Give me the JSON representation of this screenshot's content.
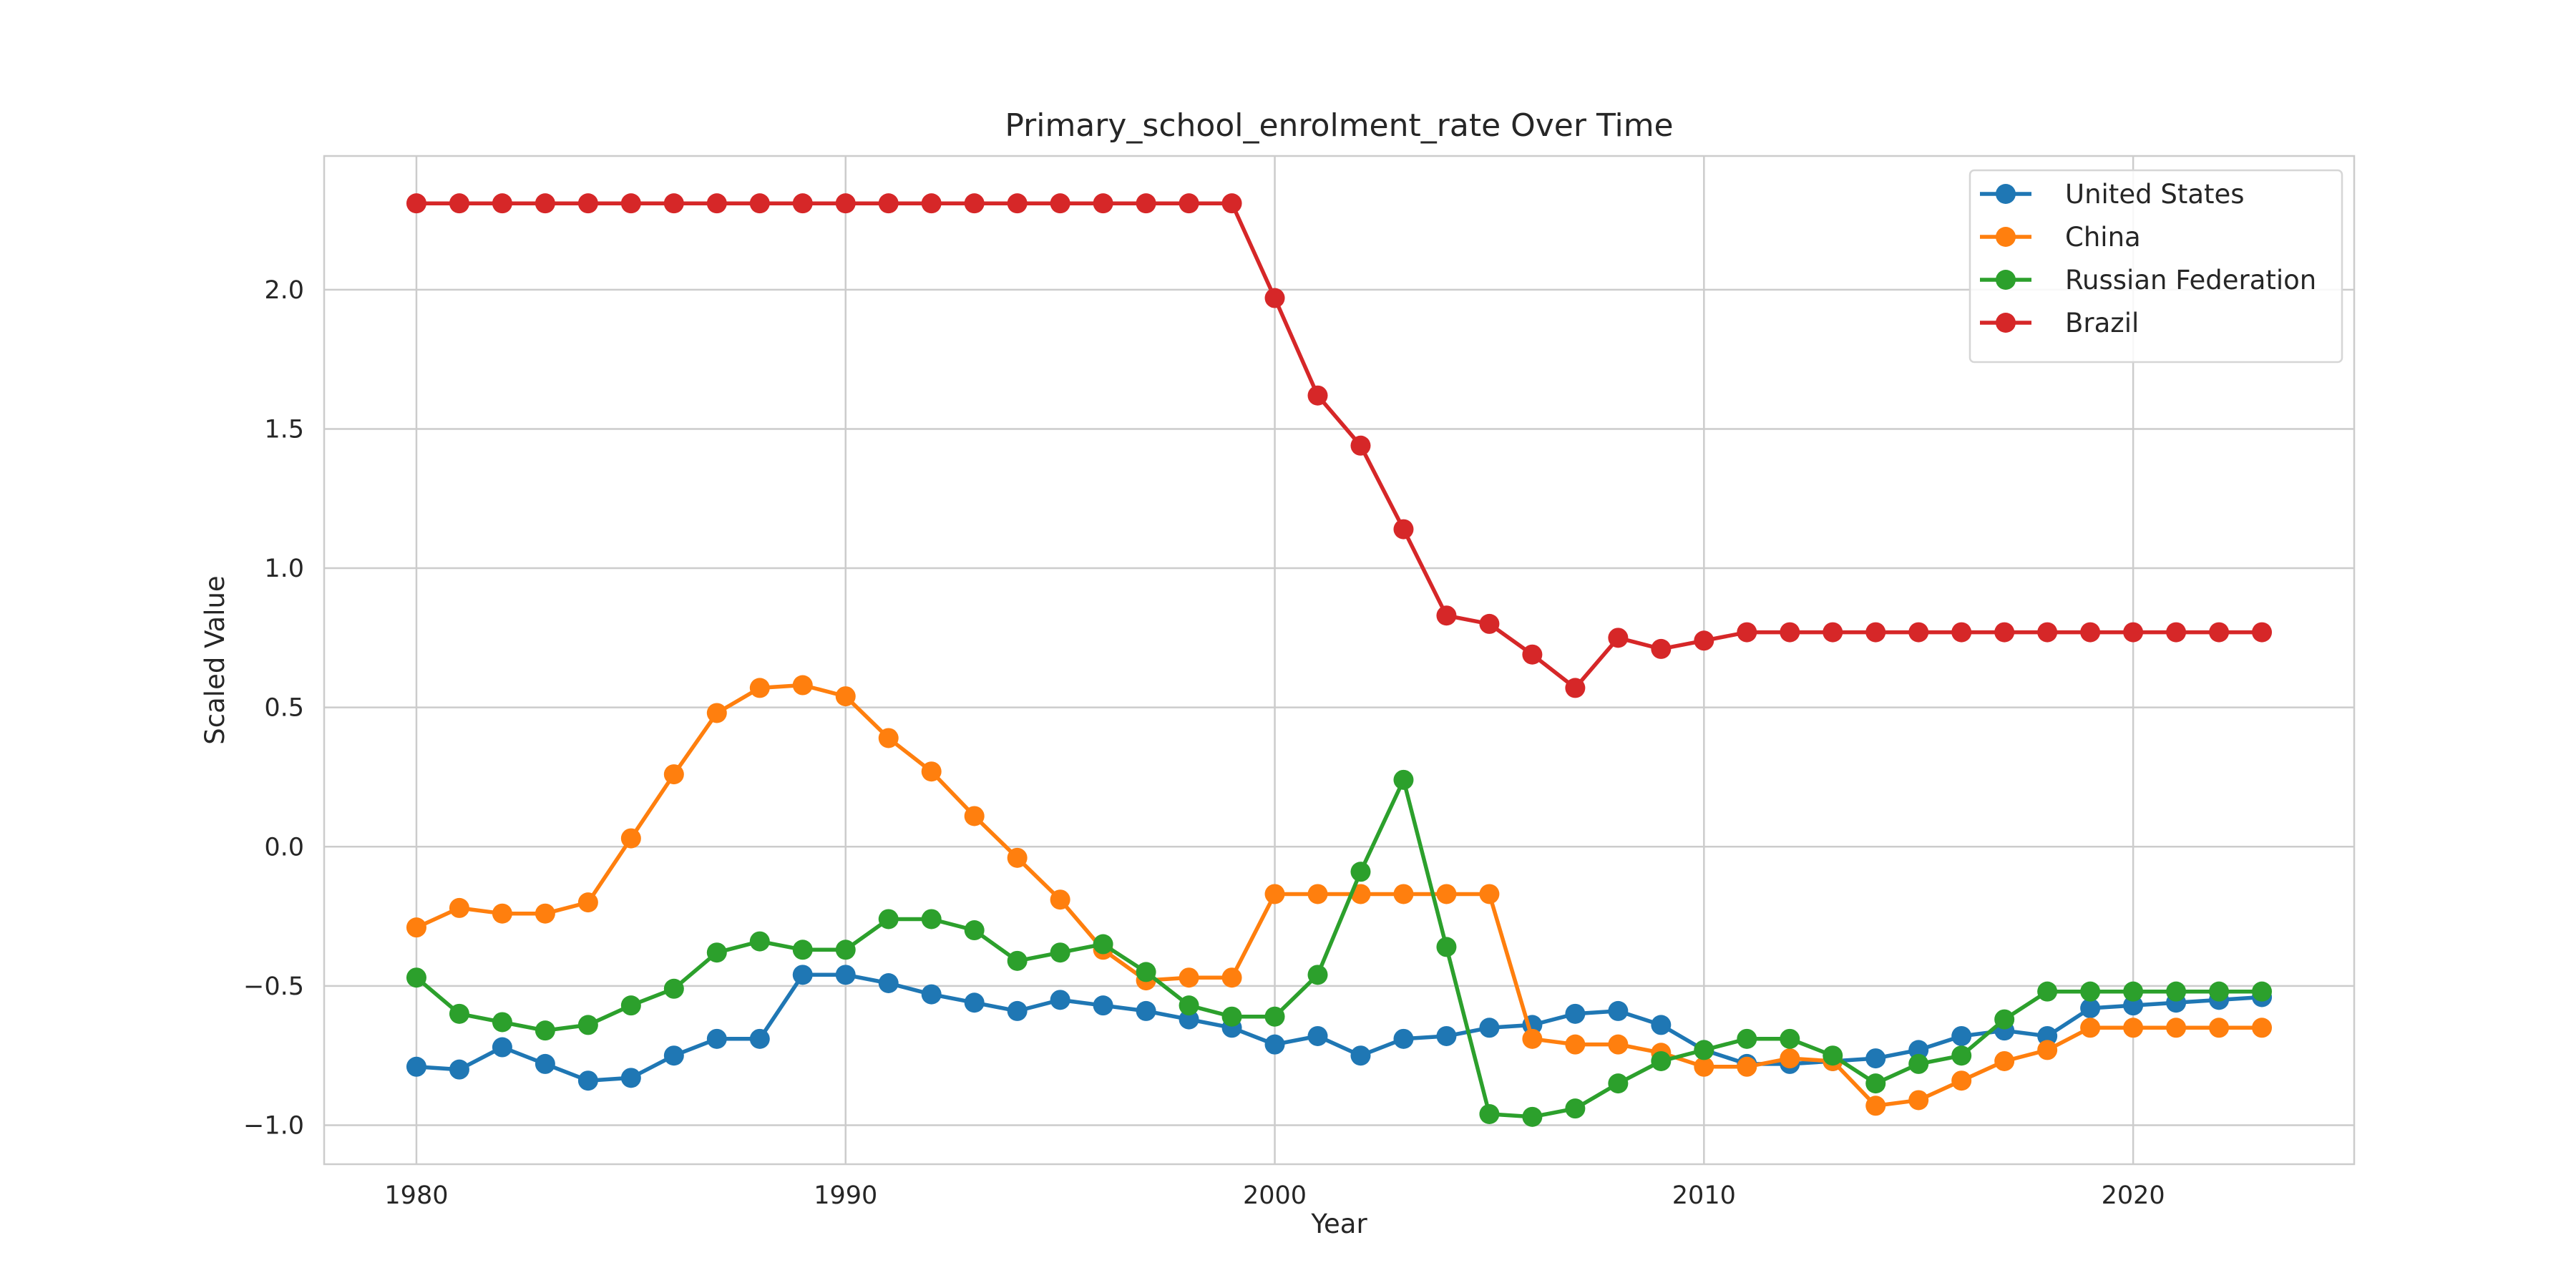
{
  "chart_data": {
    "type": "line",
    "title": "Primary_school_enrolment_rate Over Time",
    "xlabel": "Year",
    "ylabel": "Scaled Value",
    "xlim": [
      1977.85,
      2025.15
    ],
    "ylim": [
      -1.14,
      2.48
    ],
    "xticks": [
      1980,
      1990,
      2000,
      2010,
      2020
    ],
    "yticks": [
      -1.0,
      -0.5,
      0.0,
      0.5,
      1.0,
      1.5,
      2.0
    ],
    "ytick_labels": [
      "−1.0",
      "−0.5",
      "0.0",
      "0.5",
      "1.0",
      "1.5",
      "2.0"
    ],
    "grid": true,
    "legend_position": "top-right",
    "x": [
      1980,
      1981,
      1982,
      1983,
      1984,
      1985,
      1986,
      1987,
      1988,
      1989,
      1990,
      1991,
      1992,
      1993,
      1994,
      1995,
      1996,
      1997,
      1998,
      1999,
      2000,
      2001,
      2002,
      2003,
      2004,
      2005,
      2006,
      2007,
      2008,
      2009,
      2010,
      2011,
      2012,
      2013,
      2014,
      2015,
      2016,
      2017,
      2018,
      2019,
      2020,
      2021,
      2022,
      2023
    ],
    "series": [
      {
        "name": "United States",
        "color": "#1f77b4",
        "values": [
          -0.79,
          -0.8,
          -0.72,
          -0.78,
          -0.84,
          -0.83,
          -0.75,
          -0.69,
          -0.69,
          -0.46,
          -0.46,
          -0.49,
          -0.53,
          -0.56,
          -0.59,
          -0.55,
          -0.57,
          -0.59,
          -0.62,
          -0.65,
          -0.71,
          -0.68,
          -0.75,
          -0.69,
          -0.68,
          -0.65,
          -0.64,
          -0.6,
          -0.59,
          -0.64,
          -0.73,
          -0.78,
          -0.78,
          -0.77,
          -0.76,
          -0.73,
          -0.68,
          -0.66,
          -0.68,
          -0.58,
          -0.57,
          -0.56,
          -0.55,
          -0.54
        ]
      },
      {
        "name": "China",
        "color": "#ff7f0e",
        "values": [
          -0.29,
          -0.22,
          -0.24,
          -0.24,
          -0.2,
          0.03,
          0.26,
          0.48,
          0.57,
          0.58,
          0.54,
          0.39,
          0.27,
          0.11,
          -0.04,
          -0.19,
          -0.37,
          -0.48,
          -0.47,
          -0.47,
          -0.17,
          -0.17,
          -0.17,
          -0.17,
          -0.17,
          -0.17,
          -0.69,
          -0.71,
          -0.71,
          -0.74,
          -0.79,
          -0.79,
          -0.76,
          -0.77,
          -0.93,
          -0.91,
          -0.84,
          -0.77,
          -0.73,
          -0.65,
          -0.65,
          -0.65,
          -0.65,
          -0.65
        ]
      },
      {
        "name": "Russian Federation",
        "color": "#2ca02c",
        "values": [
          -0.47,
          -0.6,
          -0.63,
          -0.66,
          -0.64,
          -0.57,
          -0.51,
          -0.38,
          -0.34,
          -0.37,
          -0.37,
          -0.26,
          -0.26,
          -0.3,
          -0.41,
          -0.38,
          -0.35,
          -0.45,
          -0.57,
          -0.61,
          -0.61,
          -0.46,
          -0.09,
          0.24,
          -0.36,
          -0.96,
          -0.97,
          -0.94,
          -0.85,
          -0.77,
          -0.73,
          -0.69,
          -0.69,
          -0.75,
          -0.85,
          -0.78,
          -0.75,
          -0.62,
          -0.52,
          -0.52,
          -0.52,
          -0.52,
          -0.52,
          -0.52
        ]
      },
      {
        "name": "Brazil",
        "color": "#d62728",
        "values": [
          2.31,
          2.31,
          2.31,
          2.31,
          2.31,
          2.31,
          2.31,
          2.31,
          2.31,
          2.31,
          2.31,
          2.31,
          2.31,
          2.31,
          2.31,
          2.31,
          2.31,
          2.31,
          2.31,
          2.31,
          1.97,
          1.62,
          1.44,
          1.14,
          0.83,
          0.8,
          0.69,
          0.57,
          0.75,
          0.71,
          0.74,
          0.77,
          0.77,
          0.77,
          0.77,
          0.77,
          0.77,
          0.77,
          0.77,
          0.77,
          0.77,
          0.77,
          0.77,
          0.77
        ]
      }
    ]
  }
}
